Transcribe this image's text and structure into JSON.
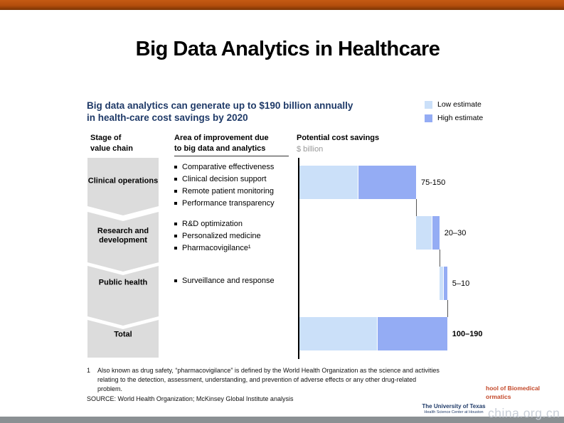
{
  "slide": {
    "title": "Big Data Analytics in Healthcare"
  },
  "exhibit": {
    "heading_line1": "Big data analytics can generate up to $190 billion annually",
    "heading_line2": "in health-care cost savings by 2020"
  },
  "legend": {
    "items": [
      {
        "label": "Low estimate",
        "color": "#cbe0f9"
      },
      {
        "label": "High estimate",
        "color": "#94acf4"
      }
    ]
  },
  "columns": {
    "stage": {
      "line1": "Stage of",
      "line2": "value chain"
    },
    "area": {
      "line1": "Area of improvement due",
      "line2": "to big data and analytics"
    },
    "savings": {
      "title": "Potential cost savings",
      "unit": "$ billion"
    }
  },
  "stages": [
    {
      "name": "Clinical operations",
      "improvements": [
        "Comparative effectiveness",
        "Clinical decision support",
        "Remote patient monitoring",
        "Performance transparency"
      ],
      "is_total": false
    },
    {
      "name": "Research and development",
      "improvements": [
        "R&D optimization",
        "Personalized medicine",
        "Pharmacovigilance¹"
      ],
      "is_total": false
    },
    {
      "name": "Public health",
      "improvements": [
        "Surveillance and response"
      ],
      "is_total": false
    },
    {
      "name": "Total",
      "improvements": [],
      "is_total": true
    }
  ],
  "chart_data": {
    "type": "bar",
    "subtype": "horizontal-cascade-range",
    "title": "Big data analytics can generate up to $190 billion annually in health-care cost savings by 2020",
    "categories": [
      "Clinical operations",
      "Research and development",
      "Public health",
      "Total"
    ],
    "series": [
      {
        "name": "Low estimate",
        "values": [
          75,
          20,
          5,
          100
        ],
        "color": "#cbe0f9"
      },
      {
        "name": "High estimate",
        "values": [
          150,
          30,
          10,
          190
        ],
        "color": "#94acf4"
      }
    ],
    "data_labels": [
      "75-150",
      "20–30",
      "5–10",
      "100–190"
    ],
    "cascade_starts": [
      0,
      150,
      180,
      0
    ],
    "xlabel": "$ billion",
    "xlim": [
      0,
      195
    ],
    "grid": false,
    "legend_position": "top-right"
  },
  "footnote": {
    "number": "1",
    "lines": [
      "Also known as drug safety, “pharmacovigilance” is defined by the World Health Organization as the science and activities",
      "relating to the detection, assessment, understanding, and prevention of adverse effects or any other drug-related",
      "problem."
    ]
  },
  "source": "SOURCE: World Health Organization; McKinsey Global Institute analysis",
  "branding": {
    "red_line1": "hool of Biomedical",
    "red_line2": "ormatics",
    "red_color": "#c4492a",
    "ut_name": "The University of Texas",
    "ut_sub": "Health Science Center at Houston",
    "watermark": "china.org.cn"
  },
  "theme": {
    "top_bar_orange": "#b44e0c",
    "heading_navy": "#1f3a68",
    "chevron_gray": "#dcdcdc",
    "bottom_bar_gray": "#8b9093"
  }
}
